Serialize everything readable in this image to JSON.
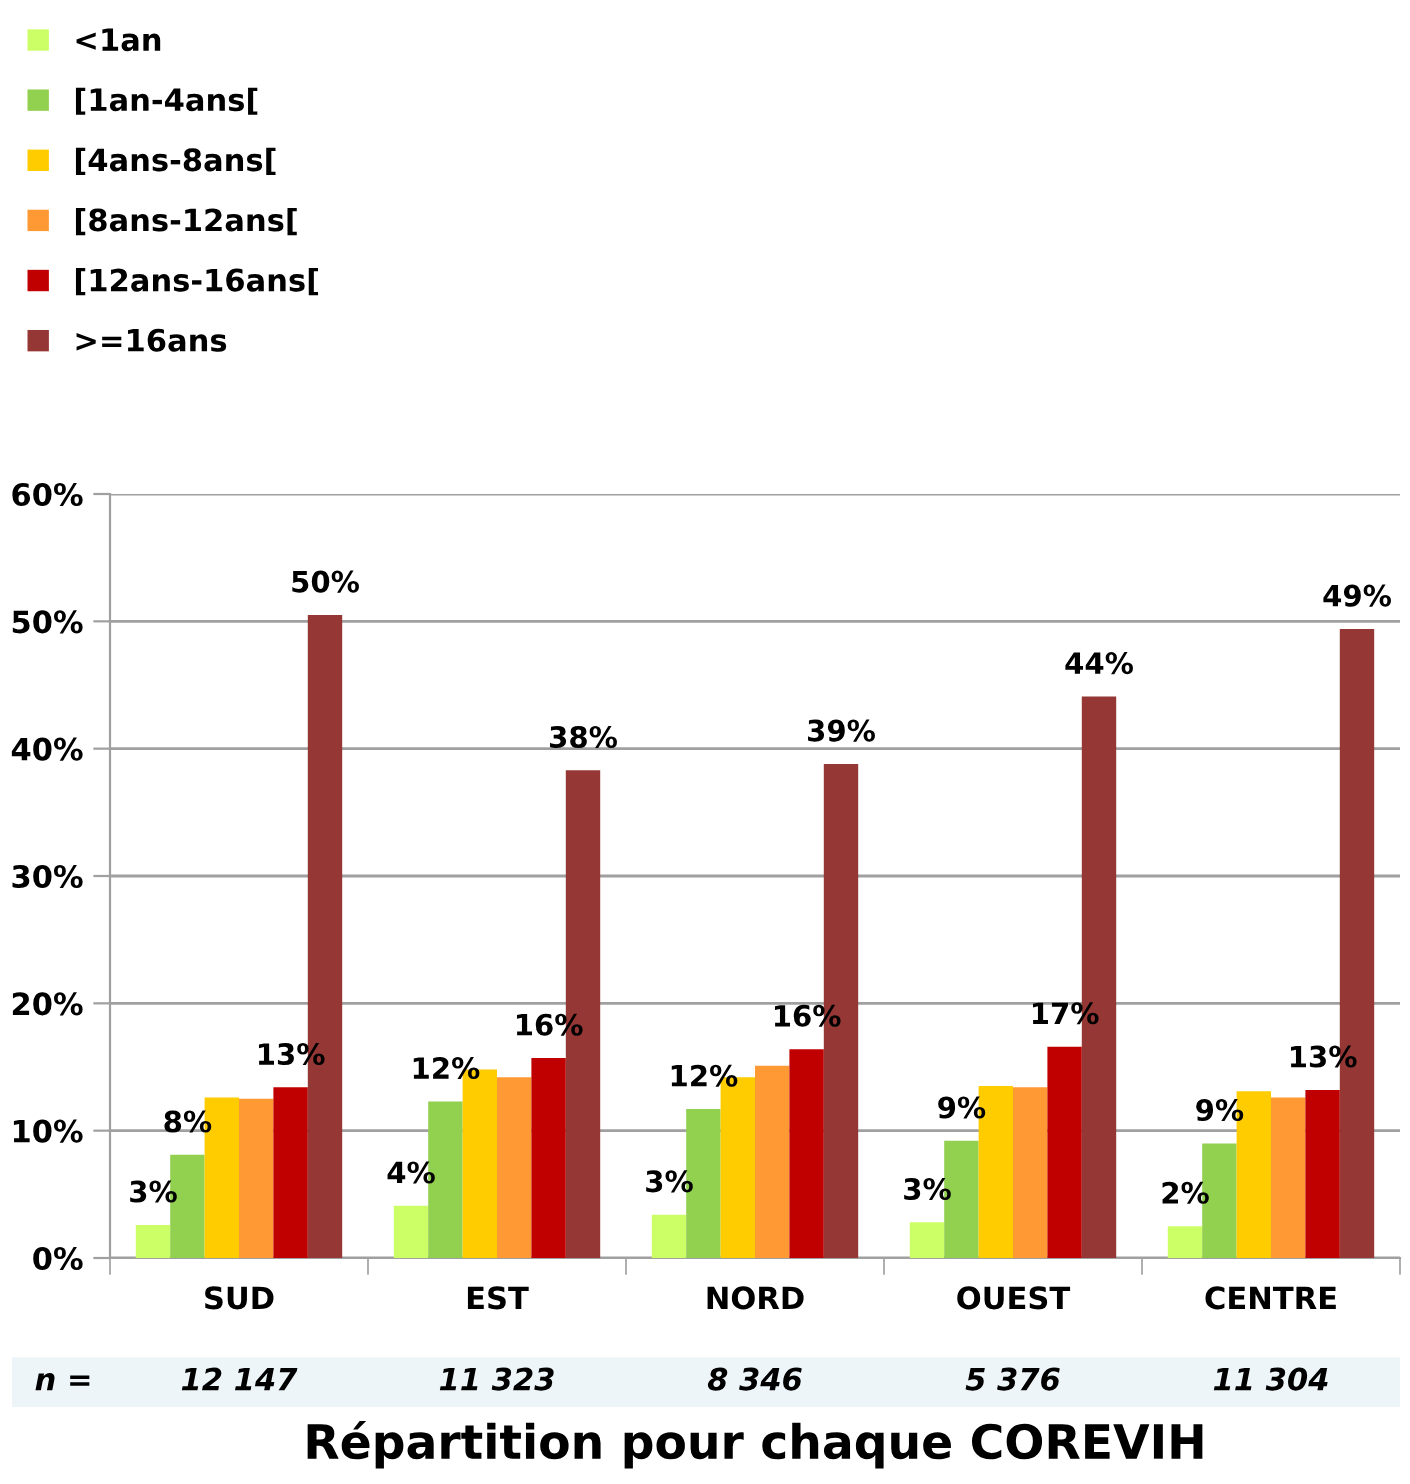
{
  "chart_data": {
    "type": "bar",
    "xlabel": "Répartition pour chaque COREVIH",
    "categories": [
      "SUD",
      "EST",
      "NORD",
      "OUEST",
      "CENTRE"
    ],
    "series": [
      {
        "name": "<1an",
        "color": "#ccff66",
        "values": [
          2.6,
          4.1,
          3.4,
          2.8,
          2.5
        ],
        "value_labels": [
          "3%",
          "4%",
          "3%",
          "3%",
          "2%"
        ]
      },
      {
        "name": "[1an-4ans[",
        "color": "#92d050",
        "values": [
          8.1,
          12.3,
          11.7,
          9.2,
          9.0
        ],
        "value_labels": [
          "8%",
          "12%",
          "12%",
          "9%",
          "9%"
        ]
      },
      {
        "name": "[4ans-8ans[",
        "color": "#ffcc00",
        "values": [
          12.6,
          14.8,
          14.2,
          13.5,
          13.1
        ]
      },
      {
        "name": "[8ans-12ans[",
        "color": "#ff9933",
        "values": [
          12.5,
          14.2,
          15.1,
          13.4,
          12.6
        ]
      },
      {
        "name": "[12ans-16ans[",
        "color": "#c00000",
        "values": [
          13.4,
          15.7,
          16.4,
          16.6,
          13.2
        ],
        "value_labels": [
          "13%",
          "16%",
          "16%",
          "17%",
          "13%"
        ]
      },
      {
        "name": ">=16ans",
        "color": "#953735",
        "values": [
          50.5,
          38.3,
          38.8,
          44.1,
          49.4
        ],
        "value_labels": [
          "50%",
          "38%",
          "39%",
          "44%",
          "49%"
        ]
      }
    ],
    "ylim": [
      0,
      60
    ],
    "yticks": [
      {
        "value": 0,
        "label": "0%"
      },
      {
        "value": 10,
        "label": "10%"
      },
      {
        "value": 20,
        "label": "20%"
      },
      {
        "value": 30,
        "label": "30%"
      },
      {
        "value": 40,
        "label": "40%"
      },
      {
        "value": 50,
        "label": "50%"
      },
      {
        "value": 60,
        "label": "60%"
      }
    ],
    "grid": "y",
    "legend": "top left",
    "annotations": [
      "n =",
      "12 147",
      "11 323",
      "8 346",
      "5 376",
      "11 304"
    ]
  }
}
